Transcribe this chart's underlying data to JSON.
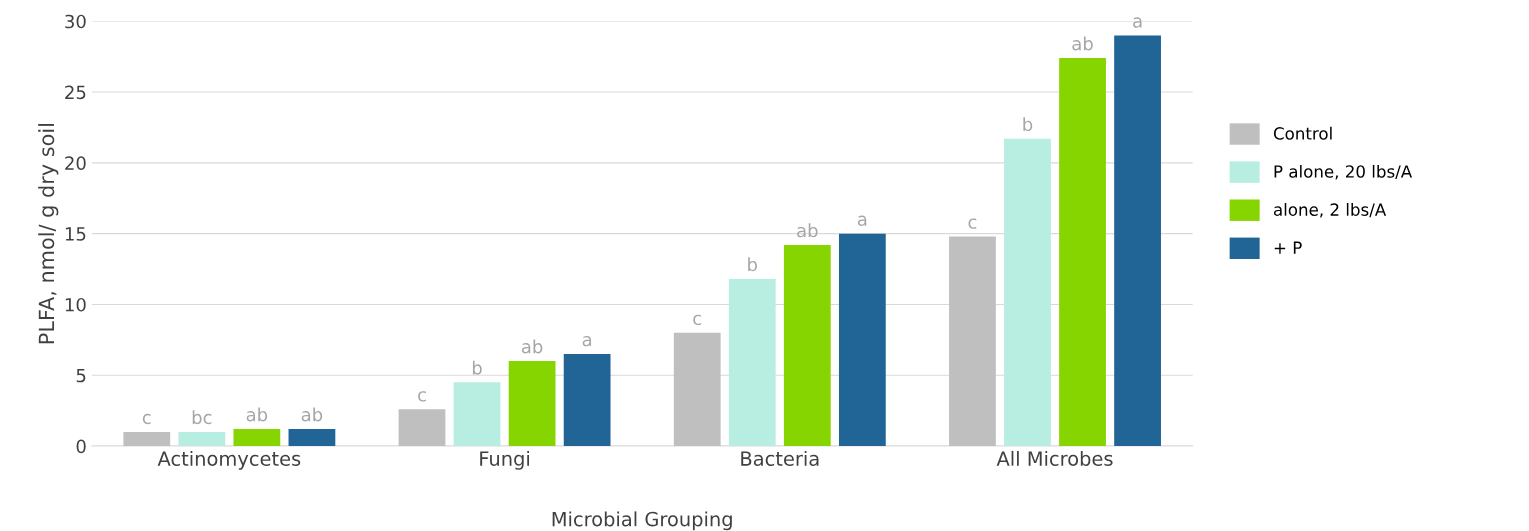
{
  "chart_data": {
    "type": "bar",
    "xlabel": "Microbial Grouping",
    "ylabel": "PLFA, nmol/ g dry soil",
    "categories": [
      "Actinomycetes",
      "Fungi",
      "Bacteria",
      "All Microbes"
    ],
    "series": [
      {
        "name": "Control",
        "color": "#bfbfbf",
        "values": [
          1.0,
          2.6,
          8.0,
          14.8
        ],
        "value_labels": [
          "c",
          "c",
          "c",
          "c"
        ]
      },
      {
        "name": "P alone, 20 lbs/A",
        "color": "#b8ede1",
        "values": [
          1.0,
          4.5,
          11.8,
          21.7
        ],
        "value_labels": [
          "bc",
          "b",
          "b",
          "b"
        ]
      },
      {
        "name": "alone, 2 lbs/A",
        "color": "#86d400",
        "values": [
          1.2,
          6.0,
          14.2,
          27.4
        ],
        "value_labels": [
          "ab",
          "ab",
          "ab",
          "ab"
        ]
      },
      {
        "name": "+ P",
        "color": "#216496",
        "values": [
          1.2,
          6.5,
          15.0,
          29.0
        ],
        "value_labels": [
          "ab",
          "a",
          "a",
          "a"
        ]
      }
    ],
    "ylim": [
      0,
      30
    ],
    "yticks": [
      0,
      5,
      10,
      15,
      20,
      25,
      30
    ],
    "grid": "y",
    "legend": "right"
  }
}
